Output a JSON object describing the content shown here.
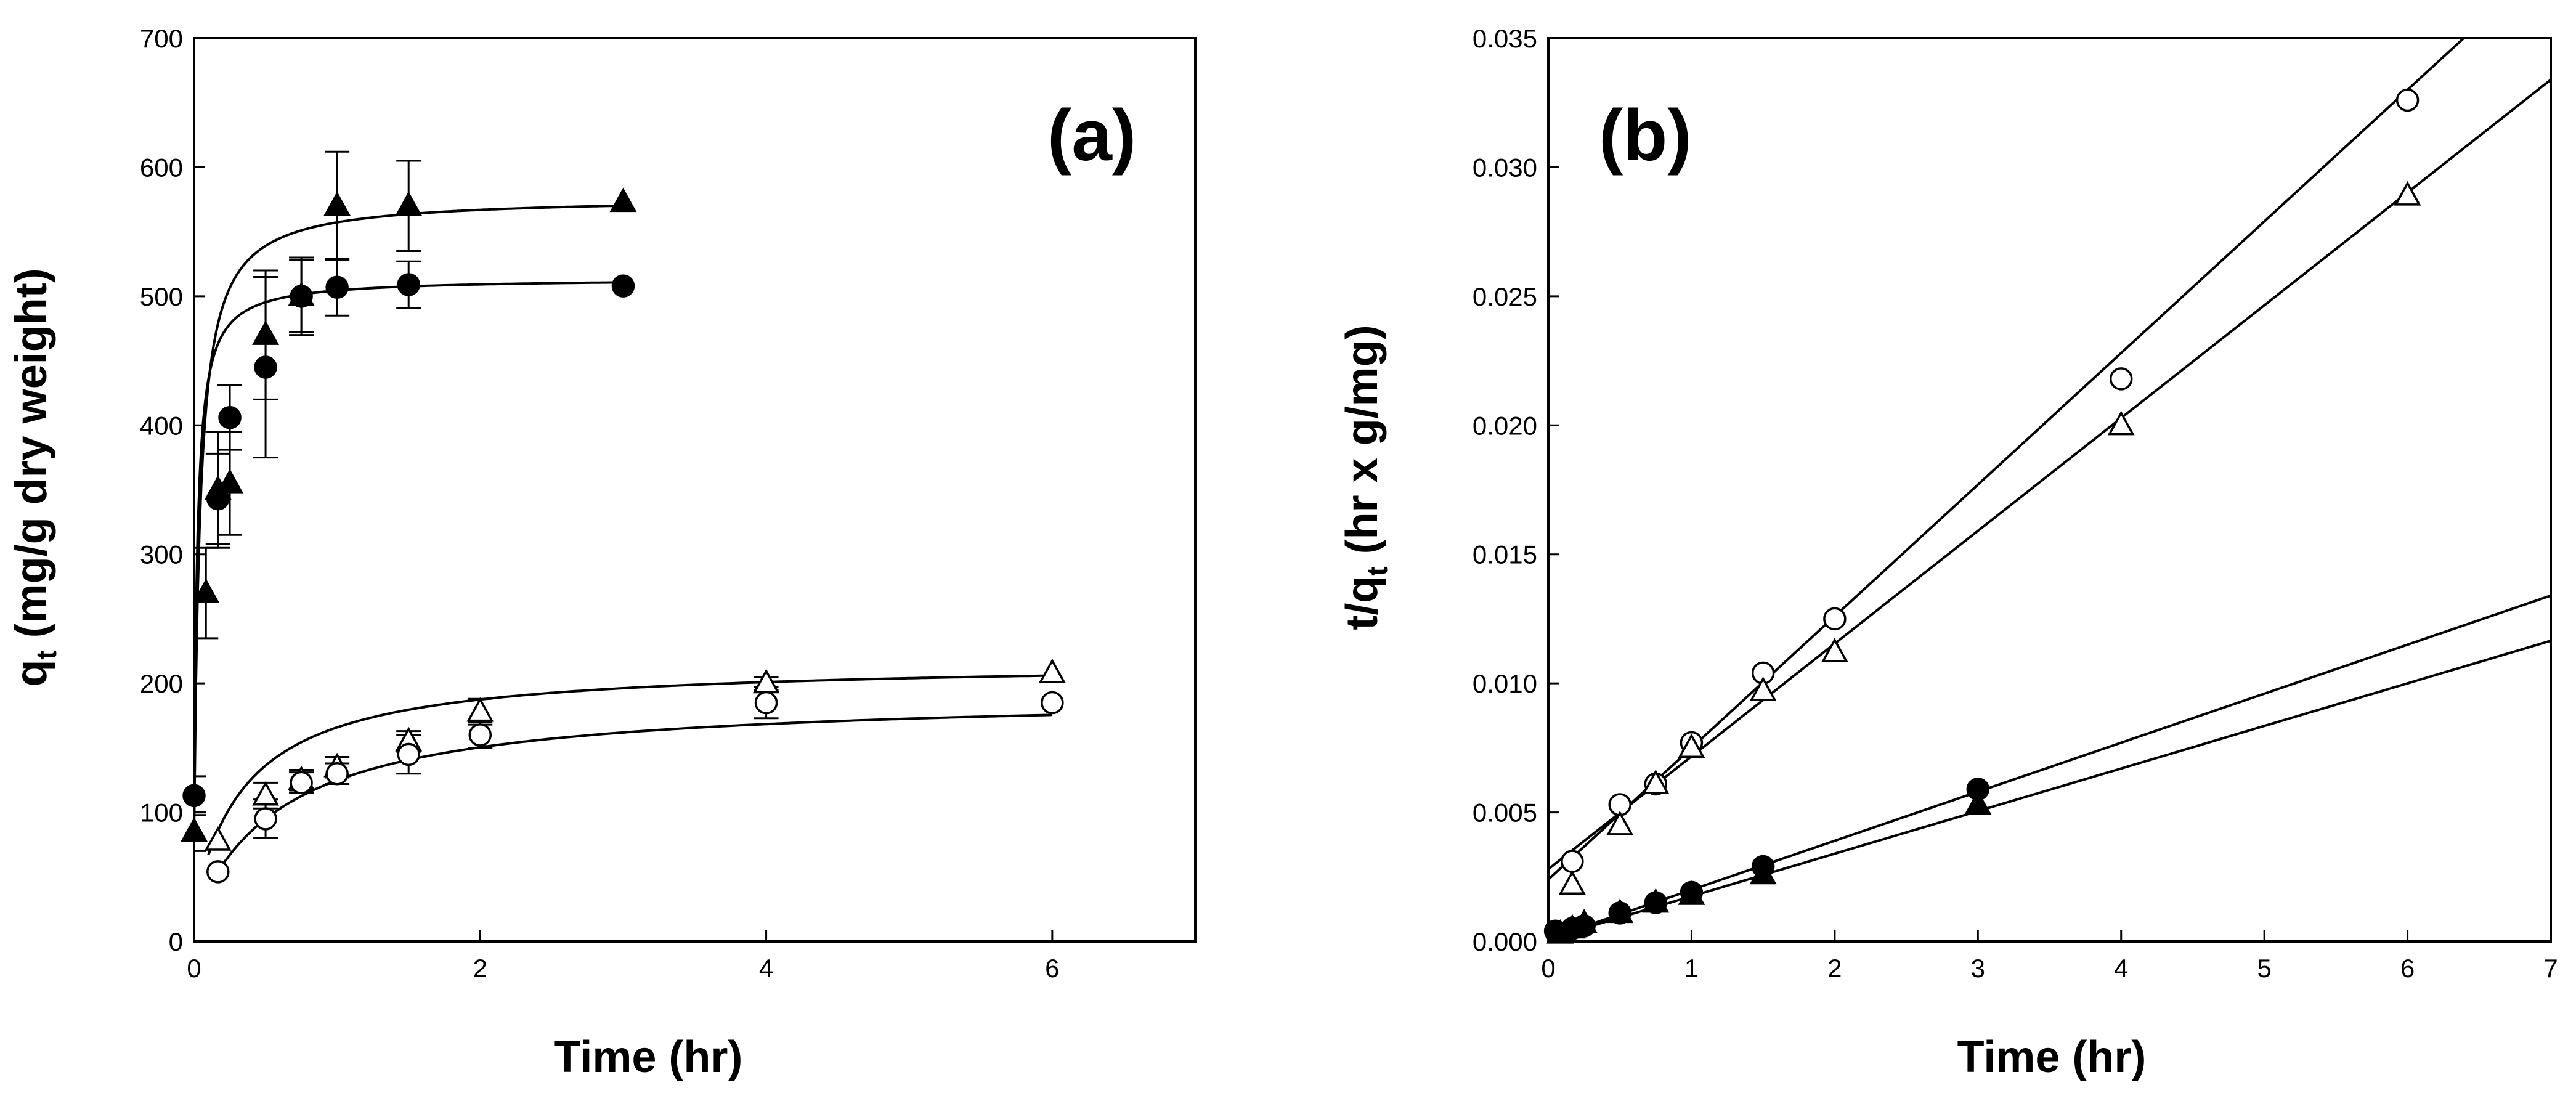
{
  "figure": {
    "background": "#ffffff",
    "ink": "#000000"
  },
  "chart_data": [
    {
      "type": "scatter",
      "panel_label": "(a)",
      "xlabel": "Time (hr)",
      "ylabel": {
        "main": "q",
        "sub": "t",
        "rest": " (mg/g dry weight)"
      },
      "xlim": [
        0,
        7
      ],
      "ylim": [
        0,
        700
      ],
      "xticks": [
        0,
        2,
        4,
        6
      ],
      "xtick_labels": [
        "0",
        "2",
        "4",
        "6"
      ],
      "yticks": [
        0,
        100,
        200,
        300,
        400,
        500,
        600,
        700
      ],
      "ytick_labels": [
        "0",
        "100",
        "200",
        "300",
        "400",
        "500",
        "600",
        "700"
      ],
      "grid": false,
      "series": [
        {
          "name": "filled-triangle",
          "marker": "triangle",
          "fill": "filled",
          "x": [
            0,
            0.083,
            0.167,
            0.25,
            0.5,
            0.75,
            1.0,
            1.5,
            3.0
          ],
          "y": [
            85,
            270,
            350,
            355,
            470,
            500,
            570,
            570,
            573
          ],
          "err": [
            15,
            35,
            45,
            40,
            50,
            30,
            42,
            35,
            0
          ],
          "fit": {
            "kind": "pseudo-second-order",
            "qe": 577,
            "k": 0.0415,
            "y0": 85,
            "xmax": 3.0
          }
        },
        {
          "name": "filled-circle",
          "marker": "circle",
          "fill": "filled",
          "x": [
            0,
            0.167,
            0.25,
            0.5,
            0.75,
            1.0,
            1.5,
            3.0
          ],
          "y": [
            113,
            343,
            406,
            445,
            500,
            507,
            509,
            508
          ],
          "err": [
            15,
            35,
            25,
            70,
            28,
            22,
            18,
            0
          ],
          "fit": {
            "kind": "pseudo-second-order",
            "qe": 514,
            "k": 0.08,
            "y0": 113,
            "xmax": 3.0
          }
        },
        {
          "name": "open-triangle",
          "marker": "triangle",
          "fill": "open",
          "x": [
            0.167,
            0.5,
            0.75,
            1.0,
            1.5,
            2.0,
            4.0,
            6.0
          ],
          "y": [
            78,
            113,
            125,
            135,
            155,
            178,
            200,
            208
          ],
          "err": [
            0,
            10,
            8,
            8,
            8,
            10,
            5,
            0
          ],
          "fit": {
            "kind": "pseudo-second-order",
            "qe": 217,
            "k": 0.0099,
            "y0": 67,
            "x0": 0.1,
            "xmax": 6.0
          }
        },
        {
          "name": "open-circle",
          "marker": "circle",
          "fill": "open",
          "x": [
            0.167,
            0.5,
            0.75,
            1.0,
            1.5,
            2.0,
            4.0,
            6.0
          ],
          "y": [
            54,
            95,
            123,
            130,
            145,
            160,
            185,
            185
          ],
          "err": [
            0,
            15,
            8,
            8,
            15,
            10,
            12,
            0
          ],
          "fit": {
            "kind": "pseudo-second-order",
            "qe": 192,
            "k": 0.0066,
            "y0": 54,
            "x0": 0.167,
            "xmax": 6.0
          }
        }
      ]
    },
    {
      "type": "scatter",
      "panel_label": "(b)",
      "xlabel": "Time (hr)",
      "ylabel": {
        "main": "t/q",
        "sub": "t",
        "rest": " (hr x g/mg)"
      },
      "xlim": [
        0,
        7
      ],
      "ylim": [
        0,
        0.035
      ],
      "xticks": [
        0,
        1,
        2,
        3,
        4,
        5,
        6,
        7
      ],
      "xtick_labels": [
        "0",
        "1",
        "2",
        "3",
        "4",
        "5",
        "6",
        "7"
      ],
      "yticks": [
        0,
        0.005,
        0.01,
        0.015,
        0.02,
        0.025,
        0.03,
        0.035
      ],
      "ytick_labels": [
        "0.000",
        "0.005",
        "0.010",
        "0.015",
        "0.020",
        "0.025",
        "0.030",
        "0.035"
      ],
      "grid": false,
      "series": [
        {
          "name": "open-circle",
          "marker": "circle",
          "fill": "open",
          "x": [
            0.167,
            0.5,
            0.75,
            1.0,
            1.5,
            2.0,
            4.0,
            6.0
          ],
          "y": [
            0.0031,
            0.0053,
            0.0061,
            0.0077,
            0.0104,
            0.0125,
            0.0218,
            0.0326
          ],
          "fit": {
            "kind": "linear",
            "intercept": 0.0024,
            "slope": 0.0051
          }
        },
        {
          "name": "open-triangle",
          "marker": "triangle",
          "fill": "open",
          "x": [
            0.167,
            0.5,
            0.75,
            1.0,
            1.5,
            2.0,
            4.0,
            6.0
          ],
          "y": [
            0.0022,
            0.0045,
            0.0061,
            0.0075,
            0.0097,
            0.0112,
            0.02,
            0.0289
          ],
          "fit": {
            "kind": "linear",
            "intercept": 0.0028,
            "slope": 0.00437
          }
        },
        {
          "name": "filled-circle",
          "marker": "circle",
          "fill": "filled",
          "x": [
            0.05,
            0.167,
            0.25,
            0.5,
            0.75,
            1.0,
            1.5,
            3.0
          ],
          "y": [
            0.0004,
            0.0005,
            0.0006,
            0.0011,
            0.0015,
            0.0019,
            0.0029,
            0.0059
          ],
          "fit": {
            "kind": "linear",
            "intercept": 0.0001,
            "slope": 0.0019
          }
        },
        {
          "name": "filled-triangle",
          "marker": "triangle",
          "fill": "filled",
          "x": [
            0.083,
            0.167,
            0.25,
            0.5,
            0.75,
            1.0,
            1.5,
            3.0
          ],
          "y": [
            0.0003,
            0.0005,
            0.0007,
            0.0011,
            0.0015,
            0.0018,
            0.0026,
            0.0053
          ],
          "fit": {
            "kind": "linear",
            "intercept": 0.0001,
            "slope": 0.00165
          }
        }
      ]
    }
  ]
}
